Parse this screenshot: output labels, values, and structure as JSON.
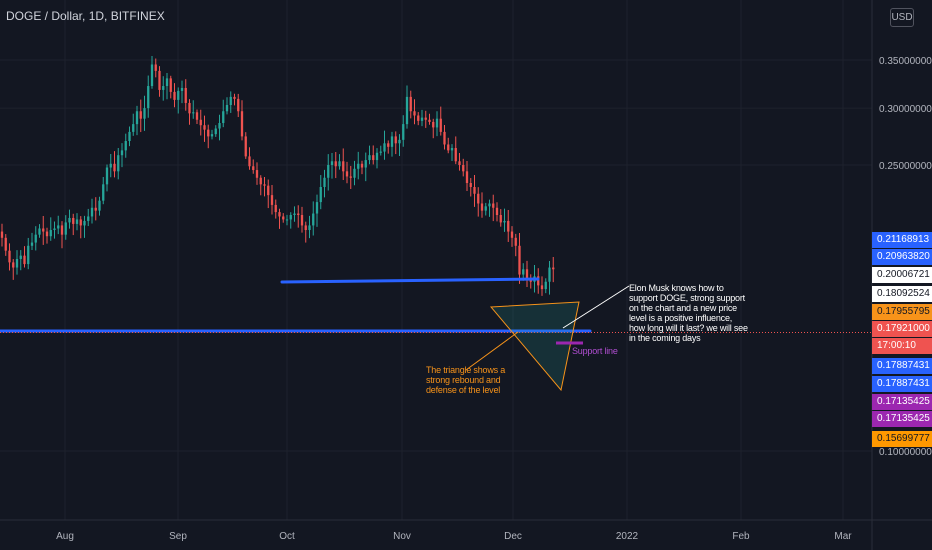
{
  "header": {
    "title": "DOGE / Dollar, 1D, BITFINEX",
    "currency_button": "USD"
  },
  "annotations": {
    "elon_note": "Elon Musk knows how to support DOGE, strong support on the chart and a new price level is a positive influence, how long will it last? we will see in the coming days",
    "triangle_note": "The triangle shows a strong rebound and defense of the level",
    "support_label": "Support line"
  },
  "price_badges": [
    {
      "label": "0.21168913",
      "bg": "#2962ff",
      "fg": "#ffffff"
    },
    {
      "label": "0.20963820",
      "bg": "#2962ff",
      "fg": "#ffffff"
    },
    {
      "label": "0.20006721",
      "bg": "#ffffff",
      "fg": "#131722"
    },
    {
      "label": "0.18092524",
      "bg": "#ffffff",
      "fg": "#131722"
    },
    {
      "label": "0.17955795",
      "bg": "#f7931a",
      "fg": "#131722"
    },
    {
      "label": "0.17921000",
      "bg": "#ef5350",
      "fg": "#ffffff"
    },
    {
      "label": "17:00:10",
      "bg": "#ef5350",
      "fg": "#ffffff"
    },
    {
      "label": "0.17887431",
      "bg": "#2962ff",
      "fg": "#ffffff"
    },
    {
      "label": "0.17887431",
      "bg": "#2962ff",
      "fg": "#ffffff"
    },
    {
      "label": "0.17135425",
      "bg": "#9c27b0",
      "fg": "#ffffff"
    },
    {
      "label": "0.17135425",
      "bg": "#9c27b0",
      "fg": "#ffffff"
    },
    {
      "label": "0.15699777",
      "bg": "#ff9800",
      "fg": "#131722"
    }
  ],
  "colors": {
    "background": "#131722",
    "grid": "#1e222d",
    "up": "#26a69a",
    "down": "#ef5350",
    "text": "#b2b5be",
    "blue_line": "#2962ff",
    "orange": "#f7931a",
    "purple": "#9c27b0",
    "current_price_line": "#ef5350"
  },
  "chart_data": {
    "type": "candlestick",
    "title": "DOGE / Dollar, 1D, BITFINEX",
    "y_axis": {
      "scale": "log",
      "ticks": [
        "0.35000000",
        "0.30000000",
        "0.25000000",
        "0.10000000"
      ],
      "tick_values": [
        0.35,
        0.3,
        0.25,
        0.1
      ]
    },
    "x_axis": {
      "ticks": [
        "Aug",
        "Sep",
        "Oct",
        "Nov",
        "Dec",
        "2022",
        "Feb",
        "Mar"
      ]
    },
    "current_price": 0.17921,
    "closes": [
      0.198,
      0.19,
      0.183,
      0.18,
      0.185,
      0.187,
      0.182,
      0.193,
      0.195,
      0.2,
      0.204,
      0.202,
      0.199,
      0.203,
      0.204,
      0.206,
      0.2,
      0.208,
      0.211,
      0.207,
      0.21,
      0.206,
      0.209,
      0.212,
      0.218,
      0.216,
      0.223,
      0.235,
      0.248,
      0.251,
      0.245,
      0.258,
      0.262,
      0.27,
      0.278,
      0.285,
      0.297,
      0.29,
      0.3,
      0.322,
      0.345,
      0.338,
      0.318,
      0.322,
      0.33,
      0.316,
      0.308,
      0.317,
      0.32,
      0.305,
      0.295,
      0.296,
      0.289,
      0.284,
      0.28,
      0.274,
      0.276,
      0.281,
      0.286,
      0.297,
      0.303,
      0.311,
      0.309,
      0.297,
      0.274,
      0.257,
      0.249,
      0.246,
      0.24,
      0.235,
      0.234,
      0.227,
      0.22,
      0.215,
      0.212,
      0.21,
      0.21,
      0.213,
      0.214,
      0.213,
      0.206,
      0.203,
      0.206,
      0.214,
      0.222,
      0.233,
      0.24,
      0.25,
      0.253,
      0.249,
      0.253,
      0.245,
      0.241,
      0.24,
      0.247,
      0.251,
      0.248,
      0.254,
      0.258,
      0.254,
      0.26,
      0.261,
      0.268,
      0.265,
      0.274,
      0.268,
      0.271,
      0.285,
      0.311,
      0.297,
      0.293,
      0.288,
      0.291,
      0.289,
      0.287,
      0.282,
      0.29,
      0.278,
      0.267,
      0.262,
      0.264,
      0.253,
      0.25,
      0.245,
      0.236,
      0.233,
      0.228,
      0.221,
      0.216,
      0.219,
      0.221,
      0.218,
      0.213,
      0.208,
      0.209,
      0.202,
      0.198,
      0.193,
      0.176,
      0.179,
      0.174,
      0.172,
      0.175,
      0.17,
      0.168,
      0.172,
      0.18,
      0.179
    ]
  }
}
